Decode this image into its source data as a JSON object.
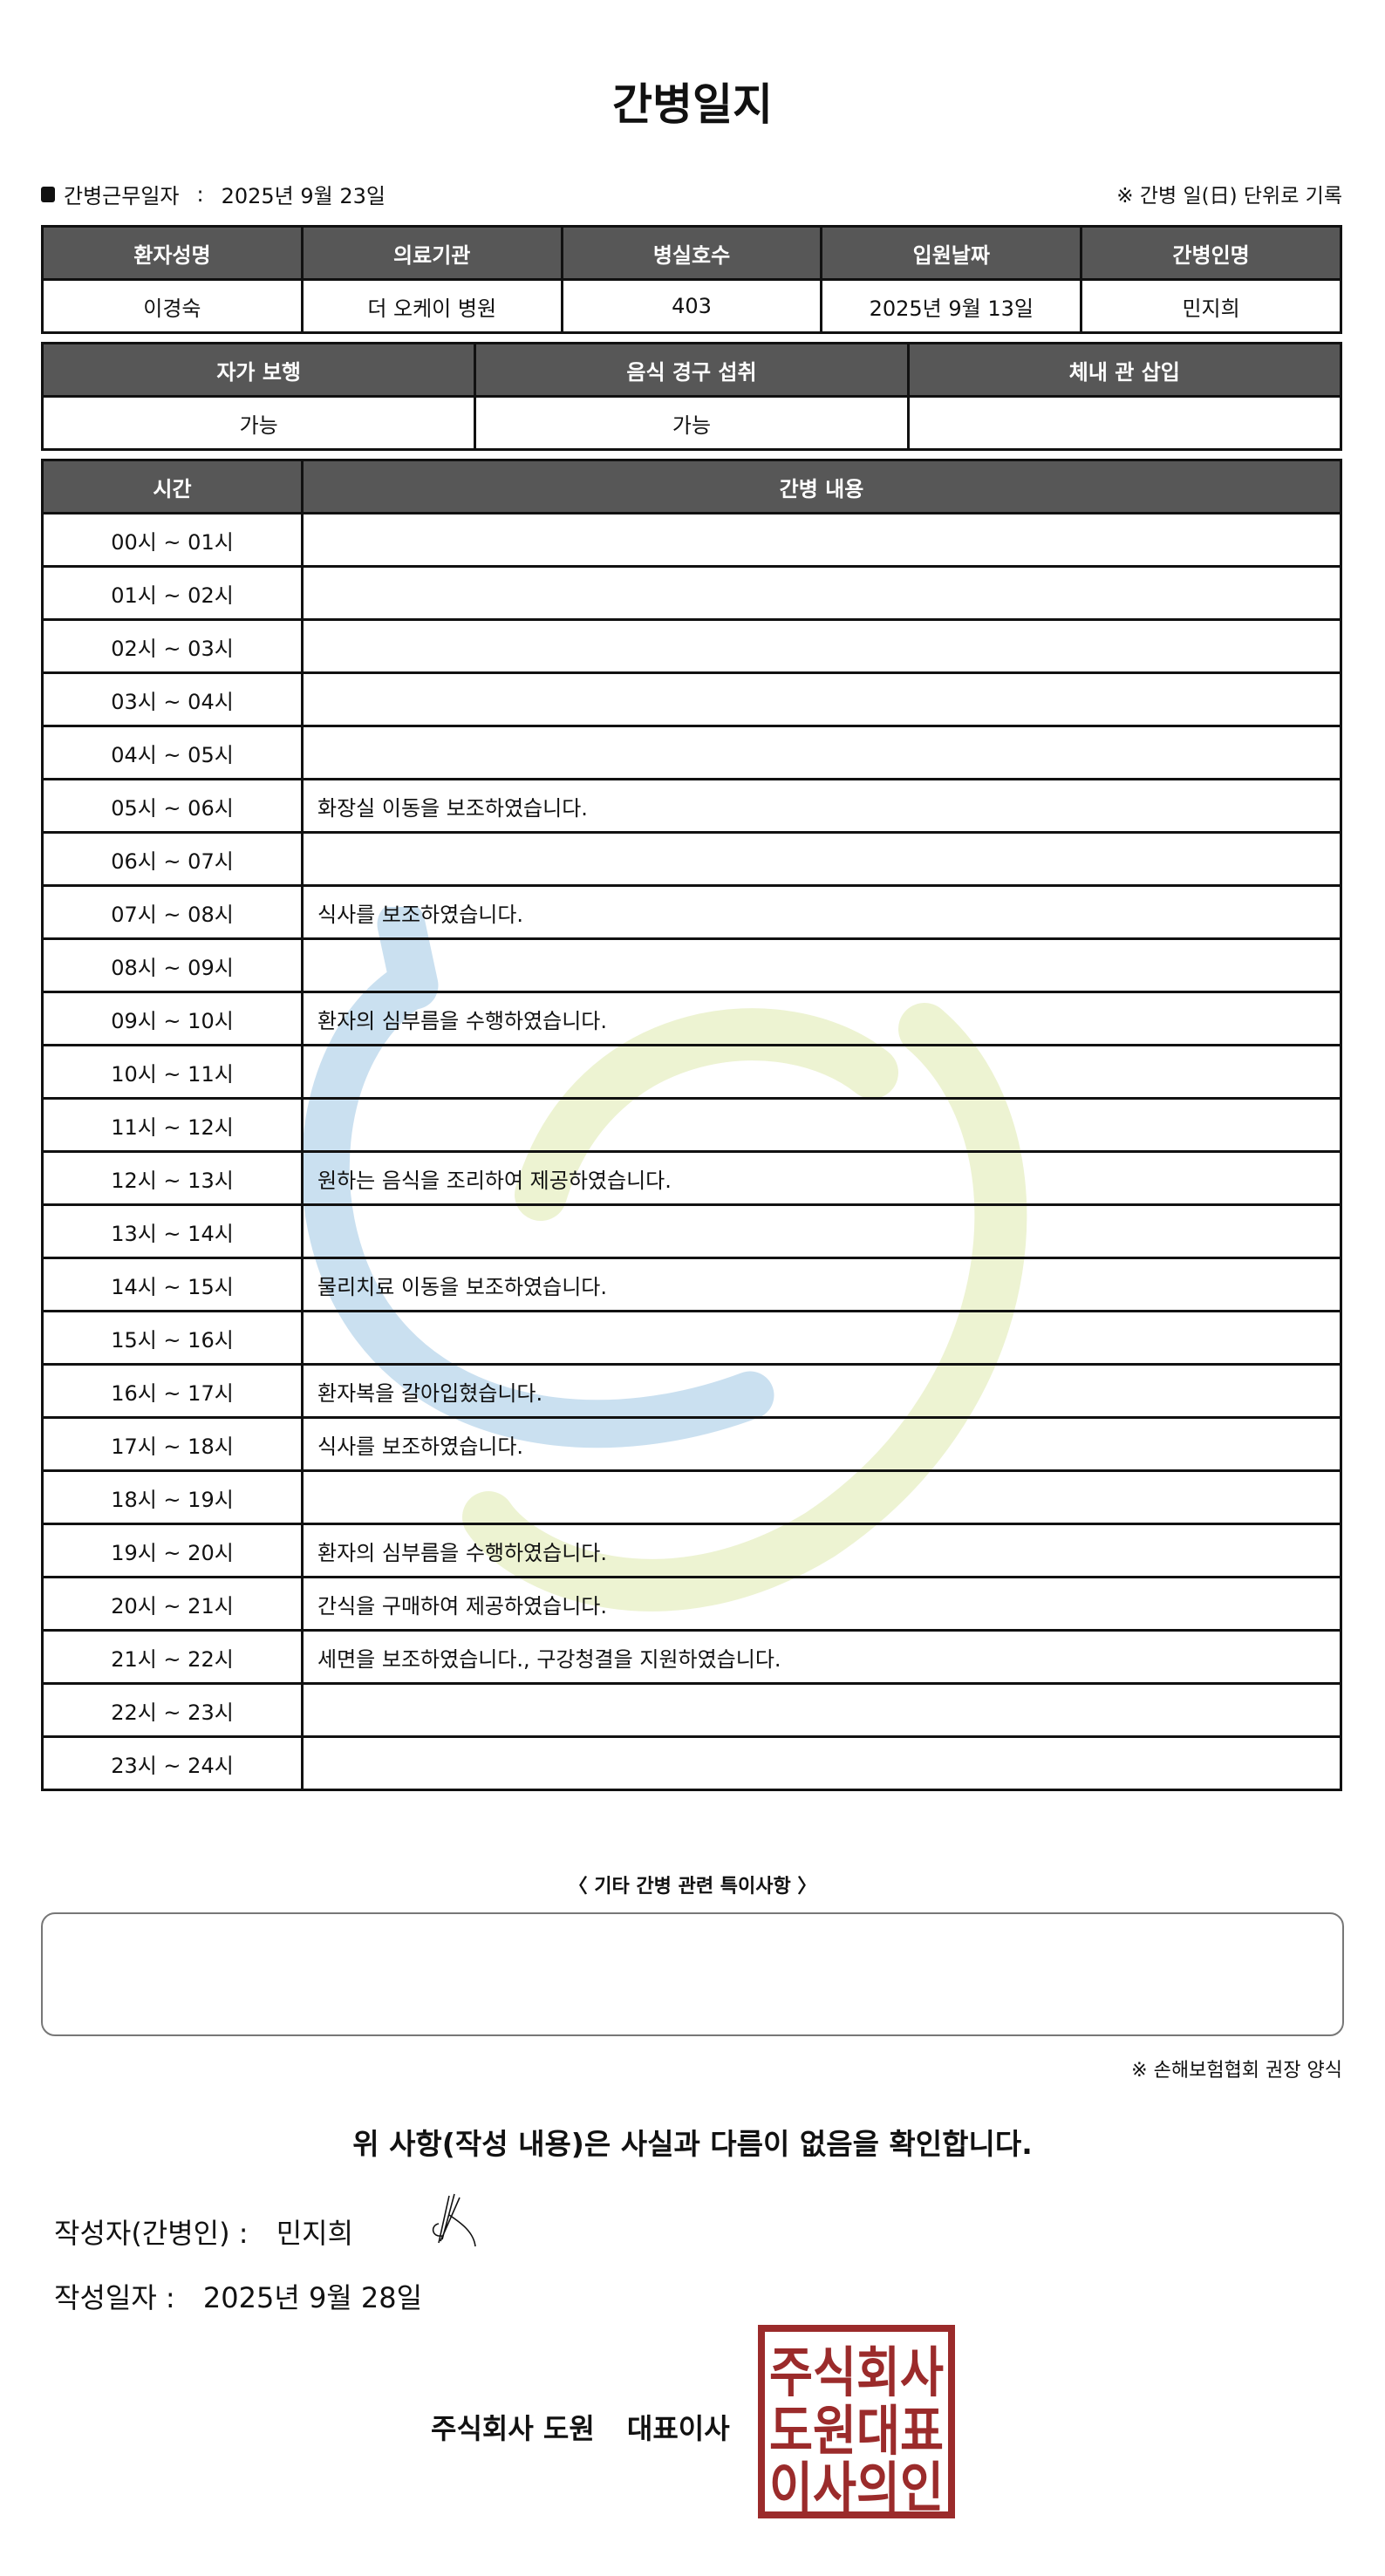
{
  "title": "간병일지",
  "work_date": {
    "label": "간병근무일자",
    "separator": ":",
    "value": "2025년 9월 23일"
  },
  "unit_note": "※ 간병 일(日) 단위로 기록",
  "patient_table": {
    "headers": [
      "환자성명",
      "의료기관",
      "병실호수",
      "입원날짜",
      "간병인명"
    ],
    "values": [
      "이경숙",
      "더 오케이 병원",
      "403",
      "2025년 9월 13일",
      "민지희"
    ]
  },
  "status_table": {
    "headers": [
      "자가 보행",
      "음식 경구 섭취",
      "체내 관 삽입"
    ],
    "values": [
      "가능",
      "가능",
      ""
    ]
  },
  "log_table": {
    "headers": [
      "시간",
      "간병 내용"
    ],
    "rows": [
      {
        "time": "00시 ~ 01시",
        "content": ""
      },
      {
        "time": "01시 ~ 02시",
        "content": ""
      },
      {
        "time": "02시 ~ 03시",
        "content": ""
      },
      {
        "time": "03시 ~ 04시",
        "content": ""
      },
      {
        "time": "04시 ~ 05시",
        "content": ""
      },
      {
        "time": "05시 ~ 06시",
        "content": "화장실 이동을 보조하였습니다."
      },
      {
        "time": "06시 ~ 07시",
        "content": ""
      },
      {
        "time": "07시 ~ 08시",
        "content": "식사를 보조하였습니다."
      },
      {
        "time": "08시 ~ 09시",
        "content": ""
      },
      {
        "time": "09시 ~ 10시",
        "content": "환자의 심부름을 수행하였습니다."
      },
      {
        "time": "10시 ~ 11시",
        "content": ""
      },
      {
        "time": "11시 ~ 12시",
        "content": ""
      },
      {
        "time": "12시 ~ 13시",
        "content": "원하는 음식을 조리하여 제공하였습니다."
      },
      {
        "time": "13시 ~ 14시",
        "content": ""
      },
      {
        "time": "14시 ~ 15시",
        "content": "물리치료 이동을 보조하였습니다."
      },
      {
        "time": "15시 ~ 16시",
        "content": ""
      },
      {
        "time": "16시 ~ 17시",
        "content": "환자복을 갈아입혔습니다."
      },
      {
        "time": "17시 ~ 18시",
        "content": "식사를 보조하였습니다."
      },
      {
        "time": "18시 ~ 19시",
        "content": ""
      },
      {
        "time": "19시 ~ 20시",
        "content": "환자의 심부름을 수행하였습니다."
      },
      {
        "time": "20시 ~ 21시",
        "content": "간식을 구매하여 제공하였습니다."
      },
      {
        "time": "21시 ~ 22시",
        "content": "세면을 보조하였습니다., 구강청결을 지원하였습니다."
      },
      {
        "time": "22시 ~ 23시",
        "content": ""
      },
      {
        "time": "23시 ~ 24시",
        "content": ""
      }
    ]
  },
  "notes": {
    "label": "〈 기타 간병 관련 특이사항 〉",
    "value": ""
  },
  "association_note": "※ 손해보험협회 권장 양식",
  "confirmation": "위 사항(작성 내용)은 사실과 다름이 없음을 확인합니다.",
  "writer": {
    "label": "작성자(간병인) :",
    "value": "민지희"
  },
  "written_date": {
    "label": "작성일자 :",
    "value": "2025년 9월 28일"
  },
  "company": {
    "name": "주식회사 도원",
    "title": "대표이사"
  },
  "stamp": {
    "text": [
      "주식회사",
      "도원대표",
      "이사의인"
    ],
    "color": "#9b2b2b"
  },
  "colors": {
    "header_bg": "#575757",
    "watermark_blue": "#b9d6ec",
    "watermark_yellow": "#e7efc4"
  }
}
